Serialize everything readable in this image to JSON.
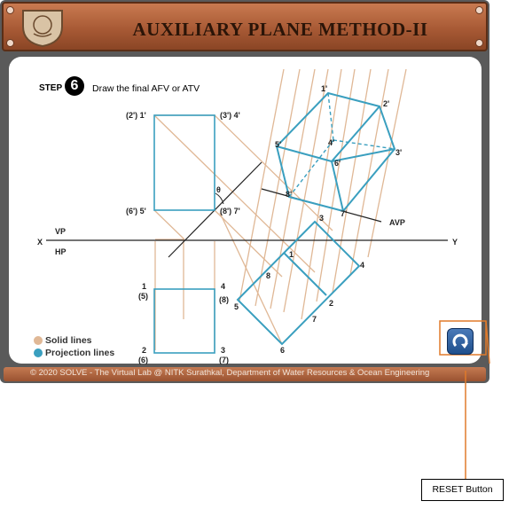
{
  "header": {
    "title": "AUXILIARY PLANE METHOD-II"
  },
  "step": {
    "label": "STEP",
    "number": "6",
    "instruction": "Draw the final AFV or ATV"
  },
  "labels": {
    "fv_tl": "(2') 1'",
    "fv_tr": "(3') 4'",
    "fv_bl": "(6') 5'",
    "fv_br": "(8') 7'",
    "theta": "θ",
    "vp": "VP",
    "hp": "HP",
    "x": "X",
    "y": "Y",
    "tv_tl_top": "1",
    "tv_tl_bot": "(5)",
    "tv_tr_top": "4",
    "tv_tr_bot": "(8)",
    "tv_bl_top": "2",
    "tv_bl_bot": "(6)",
    "tv_br_top": "3",
    "tv_br_bot": "(7)",
    "avp": "AVP",
    "aux_tv": [
      "3",
      "1",
      "8",
      "4",
      "5",
      "2",
      "7",
      "6"
    ],
    "aux_fv": [
      "1'",
      "2'",
      "5'",
      "4'",
      "6'",
      "3'",
      "8'",
      "7'"
    ]
  },
  "legend": [
    {
      "label": "Solid lines",
      "color": "#e0b896"
    },
    {
      "label": "Projection lines",
      "color": "#3a9fbf"
    }
  ],
  "footer": {
    "text": "© 2020 SOLVE - The Virtual Lab @ NITK Surathkal, Department of Water Resources & Ocean Engineering"
  },
  "callout": {
    "label": "RESET Button"
  },
  "colors": {
    "solid": "#e0b896",
    "projection": "#3a9fbf",
    "accent": "#e07a2a"
  }
}
